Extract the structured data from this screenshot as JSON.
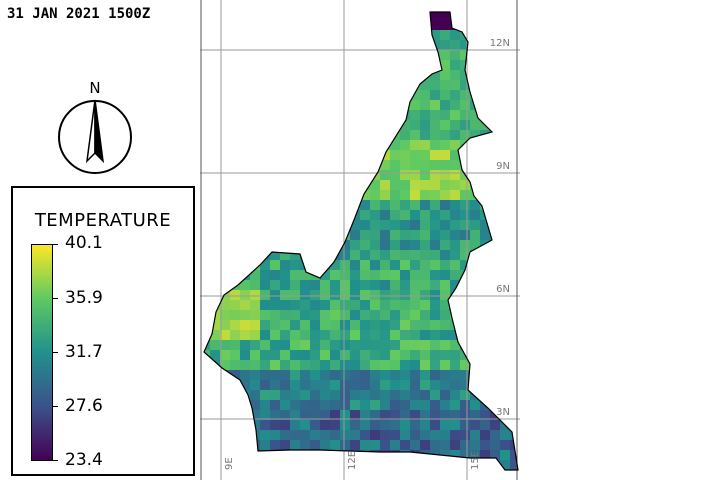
{
  "header": {
    "timestamp": "31 JAN 2021 1500Z"
  },
  "compass": {
    "label": "N"
  },
  "legend": {
    "title": "TEMPERATURE",
    "ticks": [
      "40.1",
      "35.9",
      "31.7",
      "27.6",
      "23.4"
    ],
    "min": 23.4,
    "max": 40.1,
    "colormap": "viridis"
  },
  "map": {
    "lat_labels": [
      "12N",
      "9N",
      "6N",
      "3N"
    ],
    "lon_labels": [
      "9E",
      "12E",
      "15E"
    ],
    "colors": {
      "grid": "#9a9a9a",
      "border": "#000000"
    }
  }
}
